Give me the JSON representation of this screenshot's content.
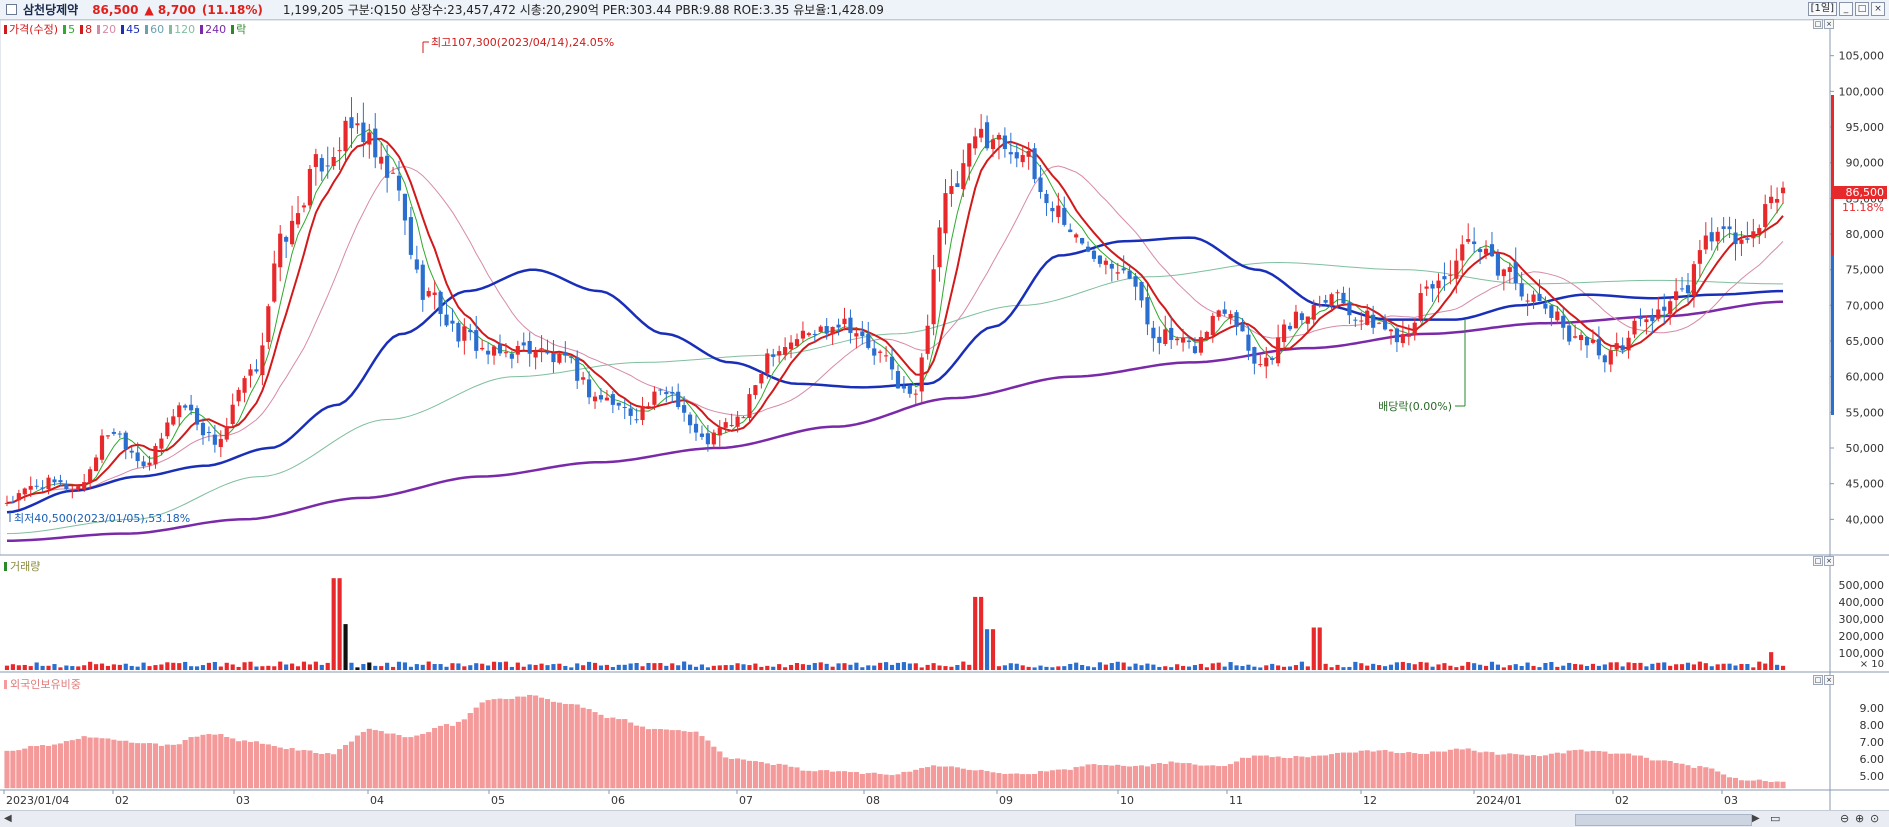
{
  "header": {
    "stock_name": "삼천당제약",
    "price": "86,500",
    "change": "▲ 8,700",
    "change_pct": "(11.18%)",
    "info": "1,199,205  구분:Q150  상장수:23,457,472  시총:20,290억  PER:303.44  PBR:9.88  ROE:3.35  유보율:1,428.09",
    "period": "[1일]"
  },
  "legend": [
    {
      "label": "가격(수정)",
      "color": "#d11a1a"
    },
    {
      "label": "5",
      "color": "#2eaa2e"
    },
    {
      "label": "8",
      "color": "#d11a1a"
    },
    {
      "label": "20",
      "color": "#d78aa8"
    },
    {
      "label": "45",
      "color": "#1a2fb8"
    },
    {
      "label": "60",
      "color": "#6aa0b0"
    },
    {
      "label": "120",
      "color": "#7fbf9e"
    },
    {
      "label": "240",
      "color": "#7a2aa8"
    },
    {
      "label": "락",
      "color": "#2a8a2a"
    }
  ],
  "annotations": {
    "high": "최고107,300(2023/04/14),24.05%",
    "low": "최저40,500(2023/01/05),53.18%",
    "dividend": "배당락(0.00%)",
    "badge_price": "86,500",
    "badge_pct": "11.18%",
    "vol_mult": "× 10"
  },
  "volume_panel": {
    "title": "거래량"
  },
  "foreign_panel": {
    "title": "외국인보유비중"
  },
  "colors": {
    "up": "#e8292c",
    "down": "#2a6fd0",
    "foreign": "#f59a9a"
  },
  "chart_data": [
    {
      "type": "candlestick",
      "title": "가격(수정)",
      "ylim": [
        35000,
        110000
      ],
      "y_ticks": [
        40000,
        45000,
        50000,
        55000,
        60000,
        65000,
        70000,
        75000,
        80000,
        85000,
        90000,
        95000,
        100000,
        105000
      ],
      "y_tick_labels": [
        "40,000",
        "45,000",
        "50,000",
        "55,000",
        "60,000",
        "65,000",
        "70,000",
        "75,000",
        "80,000",
        "85,000",
        "90,000",
        "95,000",
        "100,000",
        "105,000"
      ],
      "x_labels": [
        "2023/01/04",
        "02",
        "03",
        "04",
        "05",
        "06",
        "07",
        "08",
        "09",
        "10",
        "11",
        "12",
        "2024/01",
        "02",
        "03"
      ],
      "close_anchors": [
        42500,
        45000,
        44500,
        52500,
        48000,
        56000,
        51000,
        60000,
        80000,
        90000,
        95000,
        88000,
        72000,
        66000,
        63000,
        64000,
        62000,
        57000,
        55000,
        58000,
        51000,
        54000,
        64000,
        66000,
        68000,
        63000,
        57000,
        85000,
        94000,
        92000,
        84000,
        78000,
        76000,
        66000,
        64000,
        70000,
        62000,
        68000,
        72000,
        68000,
        66000,
        73000,
        78000,
        75000,
        70000,
        66000,
        63000,
        68000,
        71000,
        80000,
        79000,
        86500
      ],
      "ma45_anchors": [
        41000,
        44000,
        46000,
        47500,
        50000,
        56000,
        66000,
        72000,
        75000,
        72000,
        66000,
        62000,
        59000,
        58500,
        59000,
        67000,
        77000,
        79000,
        79500,
        75000,
        70000,
        68000,
        68000,
        70000,
        71500,
        71000,
        71500,
        72000
      ],
      "ma240_anchors": [
        37000,
        38000,
        40000,
        43000,
        46000,
        48000,
        50000,
        53000,
        57000,
        60000,
        62000,
        64000,
        66000,
        67500,
        68500,
        70500
      ],
      "ma120_anchors": [
        38000,
        40000,
        46000,
        54000,
        60000,
        62000,
        63000,
        66000,
        70000,
        74000,
        76000,
        75000,
        73000,
        73500,
        73000
      ]
    },
    {
      "type": "bar",
      "title": "거래량",
      "ylim": [
        0,
        600000
      ],
      "y_ticks": [
        100000,
        200000,
        300000,
        400000,
        500000
      ],
      "y_tick_labels": [
        "100,000",
        "200,000",
        "300,000",
        "400,000",
        "500,000"
      ],
      "spikes": [
        {
          "pos": 0.185,
          "value": 540000
        },
        {
          "pos": 0.19,
          "value": 270000
        },
        {
          "pos": 0.545,
          "value": 430000
        },
        {
          "pos": 0.552,
          "value": 240000
        },
        {
          "pos": 0.735,
          "value": 250000
        },
        {
          "pos": 0.99,
          "value": 105000
        }
      ]
    },
    {
      "type": "bar",
      "title": "외국인보유비중",
      "ylim": [
        4.3,
        10.3
      ],
      "y_ticks": [
        5,
        6,
        7,
        8,
        9
      ],
      "y_tick_labels": [
        "5.00",
        "6.00",
        "7.00",
        "8.00",
        "9.00"
      ],
      "anchors": [
        6.5,
        6.8,
        7.3,
        7.0,
        6.8,
        7.5,
        7.0,
        6.6,
        6.3,
        7.7,
        7.3,
        8.0,
        9.5,
        9.7,
        9.2,
        8.4,
        7.8,
        7.6,
        6.0,
        5.7,
        5.3,
        5.2,
        5.1,
        5.6,
        5.4,
        5.1,
        5.3,
        5.7,
        5.6,
        5.8,
        5.6,
        6.2,
        6.1,
        6.3,
        6.5,
        6.3,
        6.6,
        6.3,
        6.2,
        6.5,
        6.3,
        5.9,
        5.5,
        4.8,
        4.6
      ]
    }
  ]
}
